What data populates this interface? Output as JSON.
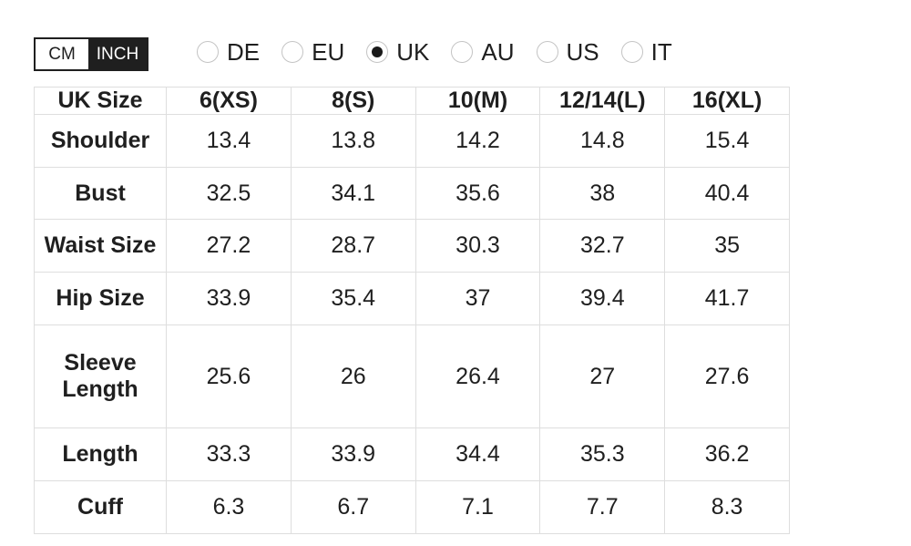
{
  "unit_toggle": {
    "options": [
      {
        "label": "CM",
        "selected": false
      },
      {
        "label": "INCH",
        "selected": true
      }
    ]
  },
  "region_radios": {
    "items": [
      {
        "label": "DE",
        "selected": false
      },
      {
        "label": "EU",
        "selected": false
      },
      {
        "label": "UK",
        "selected": true
      },
      {
        "label": "AU",
        "selected": false
      },
      {
        "label": "US",
        "selected": false
      },
      {
        "label": "IT",
        "selected": false
      }
    ]
  },
  "size_table": {
    "header": [
      "UK Size",
      "6(XS)",
      "8(S)",
      "10(M)",
      "12/14(L)",
      "16(XL)"
    ],
    "rows": [
      {
        "label": "Shoulder",
        "values": [
          "13.4",
          "13.8",
          "14.2",
          "14.8",
          "15.4"
        ]
      },
      {
        "label": "Bust",
        "values": [
          "32.5",
          "34.1",
          "35.6",
          "38",
          "40.4"
        ]
      },
      {
        "label": "Waist Size",
        "values": [
          "27.2",
          "28.7",
          "30.3",
          "32.7",
          "35"
        ]
      },
      {
        "label": "Hip Size",
        "values": [
          "33.9",
          "35.4",
          "37",
          "39.4",
          "41.7"
        ]
      },
      {
        "label": "Sleeve Length",
        "values": [
          "25.6",
          "26",
          "26.4",
          "27",
          "27.6"
        ]
      },
      {
        "label": "Length",
        "values": [
          "33.3",
          "33.9",
          "34.4",
          "35.3",
          "36.2"
        ]
      },
      {
        "label": "Cuff",
        "values": [
          "6.3",
          "6.7",
          "7.1",
          "7.7",
          "8.3"
        ]
      }
    ]
  },
  "colors": {
    "accent_dark": "#1f1f1f",
    "table_border": "#dedede",
    "radio_border": "#c4c4c4",
    "text": "#1f1f1f"
  }
}
